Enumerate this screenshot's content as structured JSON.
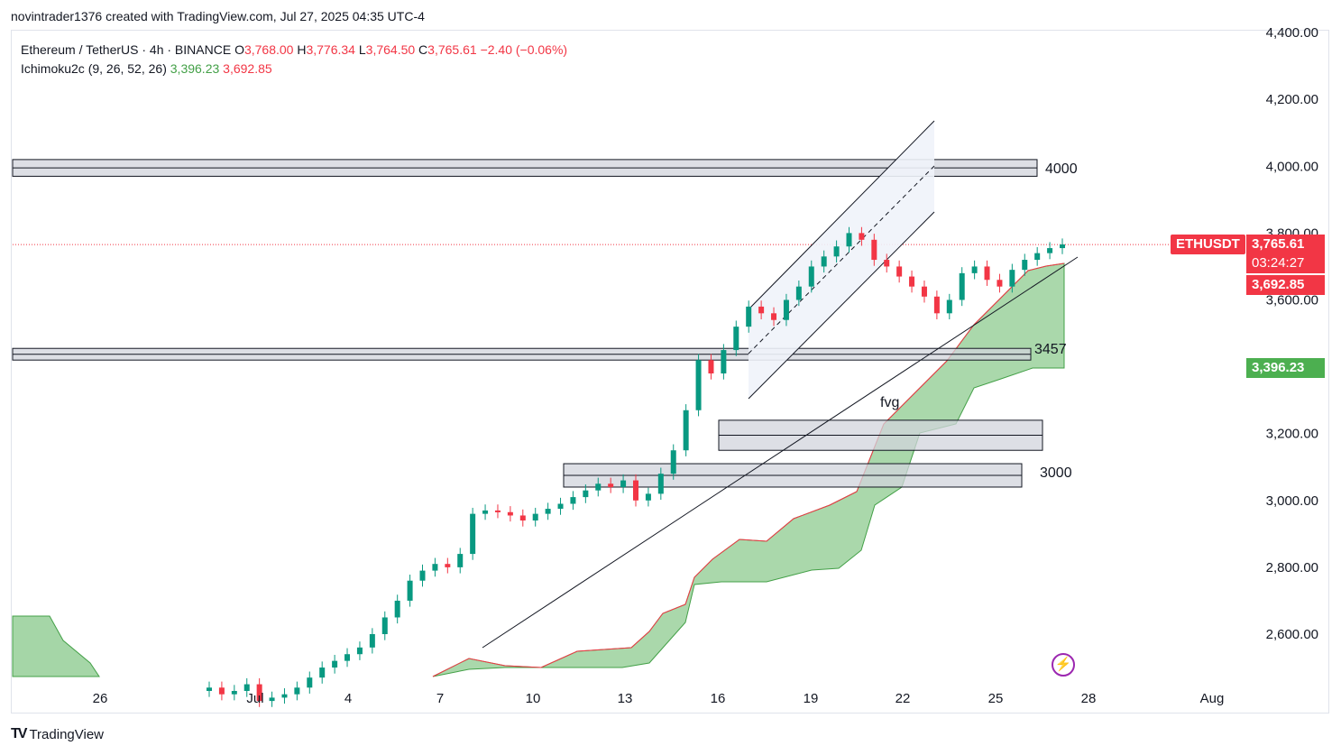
{
  "caption": "novintrader1376 created with TradingView.com, Jul 27, 2025 04:35 UTC-4",
  "legend": {
    "symbol": "Ethereum / TetherUS · 4h · BINANCE",
    "o_label": "O",
    "o": "3,768.00",
    "h_label": "H",
    "h": "3,776.34",
    "l_label": "L",
    "l": "3,764.50",
    "c_label": "C",
    "c": "3,765.61",
    "change": "−2.40 (−0.06%)",
    "indicator": "Ichimoku2c (9, 26, 52, 26)",
    "ind_a": "3,396.23",
    "ind_b": "3,692.85"
  },
  "tags": {
    "symbol": "ETHUSDT",
    "last": "3,765.61",
    "countdown": "03:24:27",
    "span_b": "3,692.85",
    "span_a": "3,396.23"
  },
  "footer": {
    "brand": "TradingView",
    "logo": "TV"
  },
  "colors": {
    "up": "#089981",
    "down": "#f23645",
    "cloud": "#a5d6a7",
    "cloud_edge": "#43a047",
    "zone": "#d1d4dc",
    "channel": "#f0f3fa",
    "bolt": "#9c27b0"
  },
  "icons": {
    "alert": "lightning-icon"
  },
  "chart_data": {
    "type": "candlestick",
    "symbol": "ETHUSDT",
    "interval": "4h",
    "y_ticks": [
      2600,
      2800,
      3000,
      3200,
      3400,
      3600,
      3800,
      4000,
      4200,
      4400
    ],
    "y_tick_labels": [
      "2,600.00",
      "2,800.00",
      "3,000.00",
      "3,200.00",
      "4,000.00",
      "4,200.00",
      "4,400.00",
      "3,600.00",
      "3,800.00"
    ],
    "x_tick_labels": [
      "26",
      "Jul",
      "4",
      "7",
      "10",
      "13",
      "16",
      "19",
      "22",
      "25",
      "28",
      "Aug"
    ],
    "last_price": 3765.61,
    "closes": [
      2440,
      2420,
      2430,
      2450,
      2400,
      2410,
      2420,
      2440,
      2470,
      2500,
      2520,
      2540,
      2560,
      2600,
      2650,
      2700,
      2760,
      2790,
      2810,
      2800,
      2840,
      2960,
      2970,
      2965,
      2955,
      2940,
      2960,
      2975,
      2990,
      3010,
      3030,
      3050,
      3040,
      3060,
      3000,
      3020,
      3080,
      3150,
      3270,
      3420,
      3380,
      3450,
      3520,
      3580,
      3560,
      3540,
      3600,
      3640,
      3700,
      3730,
      3760,
      3800,
      3780,
      3720,
      3700,
      3670,
      3640,
      3610,
      3560,
      3600,
      3680,
      3700,
      3660,
      3640,
      3690,
      3720,
      3740,
      3755,
      3766
    ],
    "ichimoku": {
      "span_a": 3396.23,
      "span_b": 3692.85
    },
    "levels": [
      {
        "label": "4000",
        "low": 3970,
        "high": 4020
      },
      {
        "label": "3457",
        "low": 3420,
        "high": 3455
      },
      {
        "label": "fvg",
        "low": 3150,
        "high": 3240
      },
      {
        "label": "3000",
        "low": 3040,
        "high": 3110
      }
    ],
    "annotations": [
      "fvg"
    ]
  }
}
